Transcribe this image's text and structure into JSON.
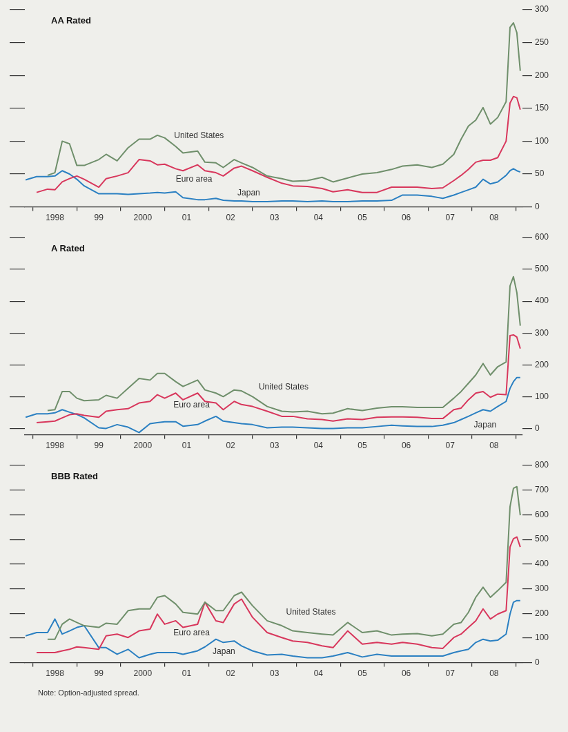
{
  "chart_data": [
    {
      "type": "line",
      "title": "AA Rated",
      "x": [
        "1997-11",
        "1998-02",
        "1998-05",
        "1998-07",
        "1998-09",
        "1998-11",
        "1999-01",
        "1999-03",
        "1999-07",
        "1999-09",
        "1999-12",
        "2000-03",
        "2000-06",
        "2000-09",
        "2000-11",
        "2001-01",
        "2001-04",
        "2001-06",
        "2001-10",
        "2001-12",
        "2002-03",
        "2002-05",
        "2002-08",
        "2002-10",
        "2003-01",
        "2003-05",
        "2003-09",
        "2003-12",
        "2004-04",
        "2004-08",
        "2004-11",
        "2005-03",
        "2005-07",
        "2005-11",
        "2006-03",
        "2006-06",
        "2006-10",
        "2007-02",
        "2007-05",
        "2007-08",
        "2007-10",
        "2007-12",
        "2008-02",
        "2008-04",
        "2008-06",
        "2008-08",
        "2008-10-10",
        "2008-11-12",
        "2008-12-10",
        "2009-01-08",
        "2009-02-06"
      ],
      "series": [
        {
          "name": "United States",
          "color": "#6f8f6b",
          "values": [
            null,
            null,
            48,
            52,
            100,
            96,
            63,
            63,
            72,
            80,
            70,
            90,
            103,
            103,
            109,
            105,
            92,
            82,
            85,
            68,
            67,
            60,
            72,
            67,
            60,
            47,
            43,
            39,
            40,
            45,
            38,
            44,
            50,
            52,
            57,
            62,
            64,
            60,
            65,
            80,
            103,
            123,
            132,
            151,
            126,
            136,
            160,
            273,
            280,
            265,
            207
          ]
        },
        {
          "name": "Euro area",
          "color": "#d8375c",
          "values": [
            null,
            22,
            27,
            26,
            38,
            43,
            47,
            42,
            30,
            43,
            47,
            52,
            72,
            70,
            64,
            65,
            58,
            55,
            64,
            55,
            52,
            47,
            59,
            62,
            55,
            45,
            36,
            32,
            31,
            28,
            23,
            26,
            22,
            22,
            30,
            30,
            30,
            28,
            29,
            40,
            48,
            57,
            68,
            71,
            71,
            75,
            100,
            158,
            168,
            166,
            148
          ]
        },
        {
          "name": "Japan",
          "color": "#2b80c2",
          "values": [
            41,
            46,
            46,
            47,
            55,
            50,
            42,
            32,
            20,
            20,
            20,
            19,
            20,
            21,
            22,
            21,
            23,
            14,
            11,
            11,
            13,
            10,
            9,
            9,
            8,
            8,
            9,
            9,
            8,
            9,
            8,
            8,
            9,
            9,
            10,
            18,
            18,
            16,
            13,
            18,
            22,
            26,
            30,
            42,
            35,
            38,
            48,
            55,
            58,
            55,
            53
          ]
        }
      ],
      "xlim": [
        "1997-10-25",
        "2009-02-24"
      ],
      "xticks": [
        {
          "value": "1998-01-01",
          "label": null
        },
        {
          "value": "1998-07-01",
          "label": "1998"
        },
        {
          "value": "1999-01-01",
          "label": null
        },
        {
          "value": "1999-07-01",
          "label": "99"
        },
        {
          "value": "2000-01-01",
          "label": null
        },
        {
          "value": "2000-07-01",
          "label": "2000"
        },
        {
          "value": "2001-01-01",
          "label": null
        },
        {
          "value": "2001-07-01",
          "label": "01"
        },
        {
          "value": "2002-01-01",
          "label": null
        },
        {
          "value": "2002-07-01",
          "label": "02"
        },
        {
          "value": "2003-01-01",
          "label": null
        },
        {
          "value": "2003-07-01",
          "label": "03"
        },
        {
          "value": "2004-01-01",
          "label": null
        },
        {
          "value": "2004-07-01",
          "label": "04"
        },
        {
          "value": "2005-01-01",
          "label": null
        },
        {
          "value": "2005-07-01",
          "label": "05"
        },
        {
          "value": "2006-01-01",
          "label": null
        },
        {
          "value": "2006-07-01",
          "label": "06"
        },
        {
          "value": "2007-01-01",
          "label": null
        },
        {
          "value": "2007-07-01",
          "label": "07"
        },
        {
          "value": "2008-01-01",
          "label": null
        },
        {
          "value": "2008-07-01",
          "label": "08"
        },
        {
          "value": "2009-01-01",
          "label": null
        }
      ],
      "ylim": [
        0,
        300
      ],
      "yticks": [
        0,
        50,
        100,
        150,
        200,
        250,
        300
      ],
      "grid": false,
      "legend": false,
      "marker": "none",
      "line_style": "solid"
    },
    {
      "type": "line",
      "title": "A Rated",
      "x": [
        "1997-11",
        "1998-02",
        "1998-05",
        "1998-07",
        "1998-09",
        "1998-11",
        "1999-01",
        "1999-03",
        "1999-07",
        "1999-09",
        "1999-12",
        "2000-03",
        "2000-06",
        "2000-09",
        "2000-11",
        "2001-01",
        "2001-04",
        "2001-06",
        "2001-10",
        "2001-12",
        "2002-03",
        "2002-05",
        "2002-08",
        "2002-10",
        "2003-01",
        "2003-05",
        "2003-09",
        "2003-12",
        "2004-04",
        "2004-08",
        "2004-11",
        "2005-03",
        "2005-07",
        "2005-11",
        "2006-03",
        "2006-06",
        "2006-10",
        "2007-02",
        "2007-05",
        "2007-08",
        "2007-10",
        "2007-12",
        "2008-02",
        "2008-04",
        "2008-06",
        "2008-08",
        "2008-10-10",
        "2008-11-12",
        "2008-12-10",
        "2009-01-08",
        "2009-02-06"
      ],
      "series": [
        {
          "name": "United States",
          "color": "#6f8f6b",
          "values": [
            null,
            null,
            56,
            59,
            116,
            116,
            95,
            87,
            90,
            104,
            95,
            126,
            157,
            152,
            173,
            173,
            147,
            132,
            152,
            121,
            111,
            100,
            121,
            118,
            100,
            69,
            54,
            52,
            54,
            46,
            48,
            62,
            56,
            64,
            68,
            68,
            66,
            66,
            66,
            95,
            116,
            142,
            168,
            204,
            168,
            194,
            209,
            448,
            477,
            427,
            323
          ]
        },
        {
          "name": "Euro area",
          "color": "#d8375c",
          "values": [
            null,
            18,
            21,
            23,
            33,
            43,
            46,
            41,
            35,
            54,
            59,
            62,
            80,
            85,
            106,
            95,
            111,
            90,
            111,
            85,
            80,
            59,
            85,
            75,
            69,
            54,
            38,
            38,
            30,
            28,
            23,
            30,
            28,
            35,
            36,
            36,
            35,
            31,
            31,
            59,
            64,
            90,
            111,
            116,
            98,
            108,
            106,
            292,
            294,
            287,
            251
          ]
        },
        {
          "name": "Japan",
          "color": "#2b80c2",
          "values": [
            35,
            46,
            46,
            49,
            59,
            51,
            44,
            33,
            2,
            0,
            12,
            4,
            -13,
            15,
            18,
            21,
            21,
            7,
            12,
            23,
            38,
            23,
            18,
            15,
            12,
            2,
            4,
            4,
            2,
            0,
            0,
            2,
            2,
            6,
            10,
            8,
            6,
            6,
            10,
            18,
            28,
            38,
            49,
            59,
            54,
            69,
            85,
            126,
            147,
            160,
            160
          ]
        }
      ],
      "xlim": [
        "1997-10-25",
        "2009-02-24"
      ],
      "xticks": [
        {
          "value": "1998-01-01",
          "label": null
        },
        {
          "value": "1998-07-01",
          "label": "1998"
        },
        {
          "value": "1999-01-01",
          "label": null
        },
        {
          "value": "1999-07-01",
          "label": "99"
        },
        {
          "value": "2000-01-01",
          "label": null
        },
        {
          "value": "2000-07-01",
          "label": "2000"
        },
        {
          "value": "2001-01-01",
          "label": null
        },
        {
          "value": "2001-07-01",
          "label": "01"
        },
        {
          "value": "2002-01-01",
          "label": null
        },
        {
          "value": "2002-07-01",
          "label": "02"
        },
        {
          "value": "2003-01-01",
          "label": null
        },
        {
          "value": "2003-07-01",
          "label": "03"
        },
        {
          "value": "2004-01-01",
          "label": null
        },
        {
          "value": "2004-07-01",
          "label": "04"
        },
        {
          "value": "2005-01-01",
          "label": null
        },
        {
          "value": "2005-07-01",
          "label": "05"
        },
        {
          "value": "2006-01-01",
          "label": null
        },
        {
          "value": "2006-07-01",
          "label": "06"
        },
        {
          "value": "2007-01-01",
          "label": null
        },
        {
          "value": "2007-07-01",
          "label": "07"
        },
        {
          "value": "2008-01-01",
          "label": null
        },
        {
          "value": "2008-07-01",
          "label": "08"
        },
        {
          "value": "2009-01-01",
          "label": null
        }
      ],
      "ylim": [
        -20,
        600
      ],
      "yticks": [
        0,
        100,
        200,
        300,
        400,
        500,
        600
      ],
      "grid": false,
      "legend": false,
      "marker": "none",
      "line_style": "solid"
    },
    {
      "type": "line",
      "title": "BBB Rated",
      "x": [
        "1997-11",
        "1998-02",
        "1998-05",
        "1998-07",
        "1998-09",
        "1998-11",
        "1999-01",
        "1999-03",
        "1999-07",
        "1999-09",
        "1999-12",
        "2000-03",
        "2000-06",
        "2000-09",
        "2000-11",
        "2001-01",
        "2001-04",
        "2001-06",
        "2001-10",
        "2001-12",
        "2002-03",
        "2002-05",
        "2002-08",
        "2002-10",
        "2003-01",
        "2003-05",
        "2003-09",
        "2003-12",
        "2004-04",
        "2004-08",
        "2004-11",
        "2005-03",
        "2005-07",
        "2005-11",
        "2006-03",
        "2006-06",
        "2006-10",
        "2007-02",
        "2007-05",
        "2007-08",
        "2007-10",
        "2007-12",
        "2008-02",
        "2008-04",
        "2008-06",
        "2008-08",
        "2008-10-10",
        "2008-11-12",
        "2008-12-10",
        "2009-01-08",
        "2009-02-06"
      ],
      "series": [
        {
          "name": "United States",
          "color": "#6f8f6b",
          "values": [
            null,
            null,
            95,
            95,
            156,
            177,
            163,
            150,
            143,
            160,
            156,
            211,
            218,
            218,
            265,
            272,
            238,
            204,
            197,
            245,
            211,
            211,
            272,
            286,
            231,
            170,
            150,
            129,
            122,
            116,
            112,
            163,
            122,
            129,
            112,
            116,
            118,
            109,
            116,
            156,
            163,
            204,
            265,
            306,
            265,
            292,
            326,
            632,
            707,
            714,
            598
          ]
        },
        {
          "name": "Euro area",
          "color": "#d8375c",
          "values": [
            null,
            41,
            41,
            41,
            48,
            54,
            64,
            61,
            54,
            109,
            116,
            102,
            129,
            136,
            197,
            156,
            170,
            143,
            156,
            245,
            170,
            163,
            238,
            258,
            184,
            122,
            102,
            88,
            82,
            68,
            61,
            129,
            75,
            82,
            75,
            82,
            75,
            61,
            58,
            102,
            116,
            143,
            170,
            218,
            177,
            197,
            211,
            469,
            503,
            510,
            469
          ]
        },
        {
          "name": "Japan",
          "color": "#2b80c2",
          "values": [
            109,
            122,
            122,
            177,
            116,
            129,
            143,
            150,
            61,
            61,
            34,
            54,
            20,
            34,
            41,
            41,
            41,
            34,
            48,
            64,
            95,
            82,
            88,
            68,
            48,
            31,
            34,
            27,
            20,
            20,
            27,
            41,
            23,
            34,
            27,
            27,
            27,
            27,
            27,
            41,
            48,
            54,
            82,
            95,
            88,
            91,
            116,
            197,
            245,
            252,
            252
          ]
        }
      ],
      "xlim": [
        "1997-10-25",
        "2009-02-24"
      ],
      "xticks": [
        {
          "value": "1998-01-01",
          "label": null
        },
        {
          "value": "1998-07-01",
          "label": "1998"
        },
        {
          "value": "1999-01-01",
          "label": null
        },
        {
          "value": "1999-07-01",
          "label": "99"
        },
        {
          "value": "2000-01-01",
          "label": null
        },
        {
          "value": "2000-07-01",
          "label": "2000"
        },
        {
          "value": "2001-01-01",
          "label": null
        },
        {
          "value": "2001-07-01",
          "label": "01"
        },
        {
          "value": "2002-01-01",
          "label": null
        },
        {
          "value": "2002-07-01",
          "label": "02"
        },
        {
          "value": "2003-01-01",
          "label": null
        },
        {
          "value": "2003-07-01",
          "label": "03"
        },
        {
          "value": "2004-01-01",
          "label": null
        },
        {
          "value": "2004-07-01",
          "label": "04"
        },
        {
          "value": "2005-01-01",
          "label": null
        },
        {
          "value": "2005-07-01",
          "label": "05"
        },
        {
          "value": "2006-01-01",
          "label": null
        },
        {
          "value": "2006-07-01",
          "label": "06"
        },
        {
          "value": "2007-01-01",
          "label": null
        },
        {
          "value": "2007-07-01",
          "label": "07"
        },
        {
          "value": "2008-01-01",
          "label": null
        },
        {
          "value": "2008-07-01",
          "label": "08"
        },
        {
          "value": "2009-01-01",
          "label": null
        }
      ],
      "ylim": [
        0,
        800
      ],
      "yticks": [
        0,
        100,
        200,
        300,
        400,
        500,
        600,
        700,
        800
      ],
      "grid": false,
      "legend": false,
      "marker": "none",
      "line_style": "solid",
      "annotations": [
        "Note: Option-adjusted spread."
      ]
    }
  ]
}
